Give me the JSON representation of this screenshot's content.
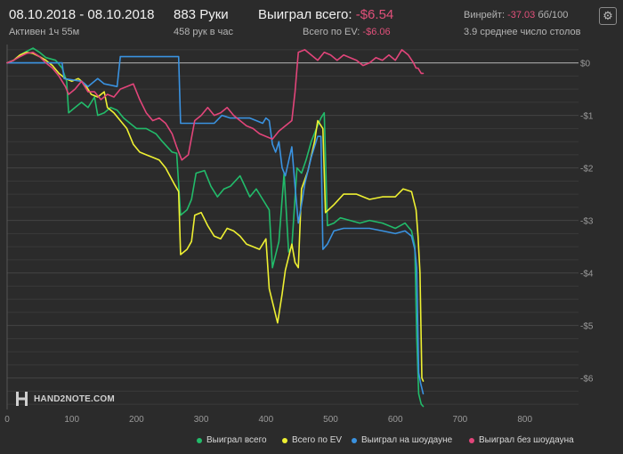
{
  "header": {
    "date_range": "08.10.2018 - 08.10.2018",
    "active_time": "Активен 1ч 55м",
    "hands": "883 Руки",
    "hands_rate": "458 рук в час",
    "won_label": "Выиграл всего:",
    "won_value": "-$6.54",
    "ev_label": "Всего по EV:",
    "ev_value": "-$6.06",
    "winrate_label": "Винрейт:",
    "winrate_value": "-37.03",
    "winrate_unit": "бб/100",
    "avg_tables": "3.9 среднее число столов",
    "settings_icon": "gear-icon"
  },
  "watermark": {
    "text": "HAND2NOTE.COM"
  },
  "colors": {
    "background": "#2b2b2b",
    "green": "#22bb6a",
    "yellow": "#eef032",
    "blue": "#3a92e0",
    "pink": "#e2457a",
    "negative_text": "#e0507a",
    "zero_line": "#9a9a9a"
  },
  "chart_data": {
    "type": "line",
    "xlim": [
      0,
      883
    ],
    "ylim": [
      -6.6,
      0.35
    ],
    "x_ticks": [
      "0",
      "100",
      "200",
      "300",
      "400",
      "500",
      "600",
      "700",
      "800"
    ],
    "y_ticks": [
      "$0",
      "-$1",
      "-$2",
      "-$3",
      "-$4",
      "-$5",
      "-$6"
    ],
    "legend_position": "bottom",
    "series": [
      {
        "name": "Выиграл всего",
        "color": "#22bb6a",
        "points": [
          [
            0,
            0
          ],
          [
            10,
            0.05
          ],
          [
            20,
            0.15
          ],
          [
            30,
            0.22
          ],
          [
            40,
            0.28
          ],
          [
            50,
            0.2
          ],
          [
            60,
            0.1
          ],
          [
            75,
            0.05
          ],
          [
            85,
            -0.1
          ],
          [
            92,
            -0.35
          ],
          [
            95,
            -0.95
          ],
          [
            105,
            -0.85
          ],
          [
            115,
            -0.75
          ],
          [
            125,
            -0.85
          ],
          [
            135,
            -0.65
          ],
          [
            140,
            -1.0
          ],
          [
            150,
            -0.95
          ],
          [
            160,
            -0.85
          ],
          [
            170,
            -0.9
          ],
          [
            180,
            -1.05
          ],
          [
            190,
            -1.15
          ],
          [
            200,
            -1.25
          ],
          [
            215,
            -1.25
          ],
          [
            230,
            -1.35
          ],
          [
            240,
            -1.5
          ],
          [
            255,
            -1.7
          ],
          [
            262,
            -1.72
          ],
          [
            268,
            -2.9
          ],
          [
            278,
            -2.8
          ],
          [
            285,
            -2.6
          ],
          [
            292,
            -2.1
          ],
          [
            305,
            -2.05
          ],
          [
            315,
            -2.35
          ],
          [
            325,
            -2.55
          ],
          [
            335,
            -2.4
          ],
          [
            345,
            -2.35
          ],
          [
            360,
            -2.15
          ],
          [
            375,
            -2.55
          ],
          [
            385,
            -2.4
          ],
          [
            395,
            -2.6
          ],
          [
            405,
            -2.8
          ],
          [
            410,
            -3.9
          ],
          [
            420,
            -3.4
          ],
          [
            428,
            -2.1
          ],
          [
            435,
            -3.6
          ],
          [
            440,
            -3.5
          ],
          [
            448,
            -2.0
          ],
          [
            455,
            -2.1
          ],
          [
            462,
            -1.85
          ],
          [
            470,
            -1.5
          ],
          [
            478,
            -1.25
          ],
          [
            485,
            -1.05
          ],
          [
            490,
            -0.95
          ],
          [
            495,
            -3.1
          ],
          [
            505,
            -3.05
          ],
          [
            515,
            -2.95
          ],
          [
            530,
            -3.0
          ],
          [
            545,
            -3.05
          ],
          [
            560,
            -3.0
          ],
          [
            580,
            -3.05
          ],
          [
            600,
            -3.15
          ],
          [
            615,
            -3.05
          ],
          [
            625,
            -3.2
          ],
          [
            630,
            -3.5
          ],
          [
            633,
            -5.2
          ],
          [
            636,
            -6.3
          ],
          [
            640,
            -6.5
          ],
          [
            643,
            -6.54
          ]
        ]
      },
      {
        "name": "Всего по EV",
        "color": "#eef032",
        "points": [
          [
            0,
            0
          ],
          [
            10,
            0.05
          ],
          [
            20,
            0.15
          ],
          [
            30,
            0.2
          ],
          [
            40,
            0.18
          ],
          [
            50,
            0.12
          ],
          [
            60,
            0.05
          ],
          [
            70,
            -0.05
          ],
          [
            80,
            -0.2
          ],
          [
            90,
            -0.3
          ],
          [
            100,
            -0.35
          ],
          [
            110,
            -0.3
          ],
          [
            120,
            -0.4
          ],
          [
            130,
            -0.6
          ],
          [
            140,
            -0.65
          ],
          [
            150,
            -0.55
          ],
          [
            155,
            -0.85
          ],
          [
            165,
            -0.95
          ],
          [
            175,
            -1.1
          ],
          [
            185,
            -1.25
          ],
          [
            195,
            -1.55
          ],
          [
            205,
            -1.7
          ],
          [
            215,
            -1.75
          ],
          [
            225,
            -1.8
          ],
          [
            235,
            -1.85
          ],
          [
            245,
            -2.0
          ],
          [
            258,
            -2.3
          ],
          [
            265,
            -2.45
          ],
          [
            268,
            -3.65
          ],
          [
            278,
            -3.55
          ],
          [
            285,
            -3.4
          ],
          [
            290,
            -2.9
          ],
          [
            300,
            -2.85
          ],
          [
            310,
            -3.1
          ],
          [
            320,
            -3.3
          ],
          [
            330,
            -3.35
          ],
          [
            340,
            -3.15
          ],
          [
            350,
            -3.2
          ],
          [
            360,
            -3.3
          ],
          [
            370,
            -3.45
          ],
          [
            380,
            -3.5
          ],
          [
            390,
            -3.55
          ],
          [
            400,
            -3.35
          ],
          [
            405,
            -4.3
          ],
          [
            410,
            -4.55
          ],
          [
            418,
            -4.95
          ],
          [
            425,
            -4.4
          ],
          [
            430,
            -3.95
          ],
          [
            440,
            -3.45
          ],
          [
            445,
            -3.8
          ],
          [
            450,
            -3.9
          ],
          [
            455,
            -2.4
          ],
          [
            465,
            -2.05
          ],
          [
            475,
            -1.5
          ],
          [
            480,
            -1.1
          ],
          [
            488,
            -1.25
          ],
          [
            492,
            -2.85
          ],
          [
            505,
            -2.7
          ],
          [
            520,
            -2.5
          ],
          [
            540,
            -2.5
          ],
          [
            560,
            -2.6
          ],
          [
            580,
            -2.55
          ],
          [
            600,
            -2.55
          ],
          [
            612,
            -2.4
          ],
          [
            625,
            -2.45
          ],
          [
            632,
            -2.8
          ],
          [
            635,
            -3.3
          ],
          [
            638,
            -4.0
          ],
          [
            641,
            -6.0
          ],
          [
            643,
            -6.06
          ]
        ]
      },
      {
        "name": "Выиграл на шоудауне",
        "color": "#3a92e0",
        "points": [
          [
            0,
            0
          ],
          [
            30,
            0
          ],
          [
            60,
            0
          ],
          [
            85,
            0
          ],
          [
            88,
            -0.3
          ],
          [
            115,
            -0.35
          ],
          [
            125,
            -0.45
          ],
          [
            140,
            -0.3
          ],
          [
            150,
            -0.4
          ],
          [
            170,
            -0.45
          ],
          [
            175,
            0.12
          ],
          [
            178,
            0.12
          ],
          [
            220,
            0.12
          ],
          [
            262,
            0.12
          ],
          [
            265,
            0.12
          ],
          [
            268,
            -1.15
          ],
          [
            300,
            -1.15
          ],
          [
            320,
            -1.15
          ],
          [
            332,
            -1.0
          ],
          [
            345,
            -1.05
          ],
          [
            375,
            -1.05
          ],
          [
            385,
            -1.1
          ],
          [
            395,
            -1.15
          ],
          [
            400,
            -1.05
          ],
          [
            405,
            -1.1
          ],
          [
            410,
            -1.55
          ],
          [
            415,
            -1.7
          ],
          [
            420,
            -1.5
          ],
          [
            425,
            -2.0
          ],
          [
            430,
            -2.15
          ],
          [
            440,
            -1.6
          ],
          [
            445,
            -2.35
          ],
          [
            450,
            -3.05
          ],
          [
            455,
            -2.7
          ],
          [
            460,
            -2.3
          ],
          [
            470,
            -1.8
          ],
          [
            480,
            -1.4
          ],
          [
            485,
            -1.4
          ],
          [
            488,
            -3.55
          ],
          [
            495,
            -3.45
          ],
          [
            505,
            -3.2
          ],
          [
            520,
            -3.15
          ],
          [
            540,
            -3.15
          ],
          [
            560,
            -3.15
          ],
          [
            580,
            -3.2
          ],
          [
            600,
            -3.25
          ],
          [
            615,
            -3.2
          ],
          [
            625,
            -3.3
          ],
          [
            630,
            -3.55
          ],
          [
            633,
            -3.9
          ],
          [
            636,
            -5.9
          ],
          [
            639,
            -6.1
          ],
          [
            643,
            -6.3
          ]
        ]
      },
      {
        "name": "Выиграл без шоудауна",
        "color": "#e2457a",
        "points": [
          [
            0,
            0
          ],
          [
            10,
            0.05
          ],
          [
            20,
            0.12
          ],
          [
            30,
            0.18
          ],
          [
            40,
            0.2
          ],
          [
            50,
            0.12
          ],
          [
            60,
            0.0
          ],
          [
            70,
            -0.1
          ],
          [
            80,
            -0.25
          ],
          [
            90,
            -0.45
          ],
          [
            95,
            -0.6
          ],
          [
            105,
            -0.5
          ],
          [
            115,
            -0.35
          ],
          [
            125,
            -0.55
          ],
          [
            135,
            -0.55
          ],
          [
            145,
            -0.7
          ],
          [
            155,
            -0.6
          ],
          [
            165,
            -0.65
          ],
          [
            175,
            -0.5
          ],
          [
            185,
            -0.45
          ],
          [
            195,
            -0.4
          ],
          [
            205,
            -0.7
          ],
          [
            215,
            -0.95
          ],
          [
            225,
            -1.1
          ],
          [
            235,
            -1.05
          ],
          [
            245,
            -1.15
          ],
          [
            255,
            -1.35
          ],
          [
            262,
            -1.6
          ],
          [
            270,
            -1.85
          ],
          [
            280,
            -1.75
          ],
          [
            290,
            -1.1
          ],
          [
            300,
            -1.0
          ],
          [
            310,
            -0.85
          ],
          [
            320,
            -1.0
          ],
          [
            330,
            -0.95
          ],
          [
            340,
            -0.85
          ],
          [
            350,
            -1.0
          ],
          [
            360,
            -1.1
          ],
          [
            370,
            -1.2
          ],
          [
            380,
            -1.25
          ],
          [
            390,
            -1.35
          ],
          [
            400,
            -1.4
          ],
          [
            410,
            -1.45
          ],
          [
            420,
            -1.3
          ],
          [
            430,
            -1.2
          ],
          [
            440,
            -1.1
          ],
          [
            445,
            -0.55
          ],
          [
            450,
            0.2
          ],
          [
            460,
            0.25
          ],
          [
            470,
            0.15
          ],
          [
            480,
            0.05
          ],
          [
            490,
            0.2
          ],
          [
            500,
            0.15
          ],
          [
            510,
            0.05
          ],
          [
            520,
            0.15
          ],
          [
            530,
            0.1
          ],
          [
            540,
            0.05
          ],
          [
            550,
            -0.05
          ],
          [
            560,
            0.0
          ],
          [
            570,
            0.1
          ],
          [
            580,
            0.05
          ],
          [
            590,
            0.15
          ],
          [
            600,
            0.05
          ],
          [
            610,
            0.25
          ],
          [
            620,
            0.15
          ],
          [
            628,
            0.0
          ],
          [
            632,
            -0.1
          ],
          [
            635,
            -0.1
          ],
          [
            640,
            -0.2
          ],
          [
            643,
            -0.2
          ]
        ]
      }
    ]
  }
}
